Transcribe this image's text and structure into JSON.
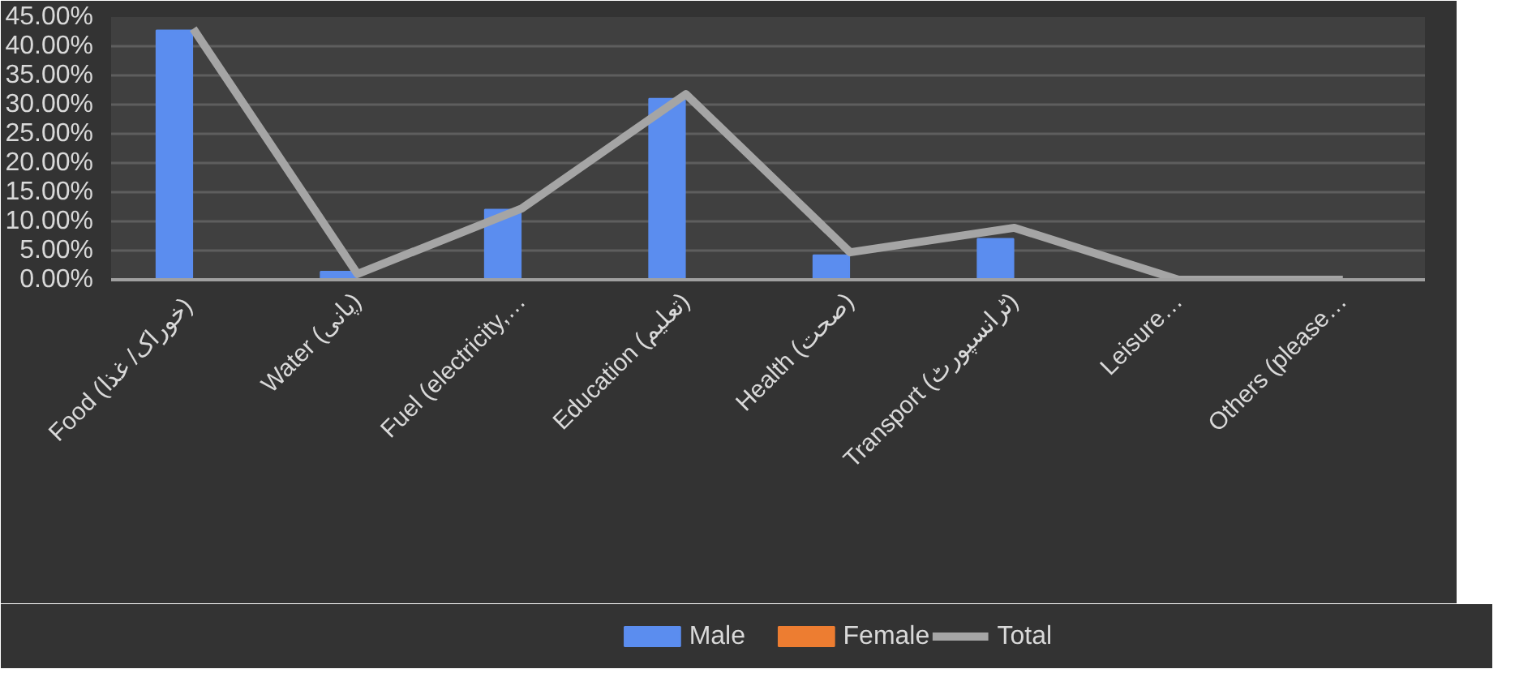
{
  "chart_data": {
    "type": "bar",
    "categories": [
      "Food  (خوراک/ غذا)",
      "Water (پانی)",
      "Fuel (electricity,…",
      "Education (تعلیم)",
      "Health (صحت)",
      "Transport (ٹرانسپورٹ)",
      "Leisure…",
      "Others (please…"
    ],
    "series": [
      {
        "name": "Male",
        "color": "#5b8def",
        "values": [
          42.7,
          1.4,
          12.0,
          31.0,
          4.2,
          7.0,
          0,
          0
        ]
      },
      {
        "name": "Female",
        "color": "#ed7d31",
        "values": [
          0,
          0,
          0,
          0,
          0,
          0,
          0,
          0
        ]
      },
      {
        "name": "Total",
        "type": "line",
        "color": "#a5a5a5",
        "values": [
          43.0,
          1.0,
          12.2,
          31.8,
          4.7,
          8.9,
          0,
          0
        ]
      }
    ],
    "ylim": [
      0,
      45
    ],
    "yticks": [
      {
        "value": 0,
        "label": "0.00%"
      },
      {
        "value": 5,
        "label": "5.00%"
      },
      {
        "value": 10,
        "label": "10.00%"
      },
      {
        "value": 15,
        "label": "15.00%"
      },
      {
        "value": 20,
        "label": "20.00%"
      },
      {
        "value": 25,
        "label": "25.00%"
      },
      {
        "value": 30,
        "label": "30.00%"
      },
      {
        "value": 35,
        "label": "35.00%"
      },
      {
        "value": 40,
        "label": "40.00%"
      },
      {
        "value": 45,
        "label": "45.00%"
      }
    ],
    "grid": "y",
    "legend": "bottom",
    "marker": "none",
    "line_style": "solid"
  }
}
